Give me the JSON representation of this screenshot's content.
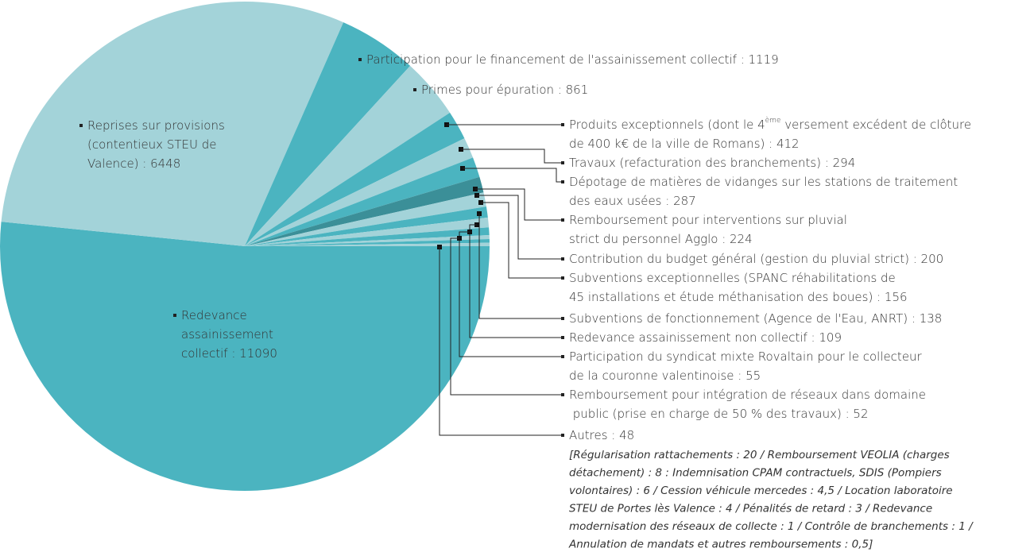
{
  "chart_data": {
    "type": "pie",
    "categories": [
      [
        "Redevance",
        "assainissement",
        "collectif : 11090"
      ],
      [
        "Reprises sur provisions",
        "(contentieux STEU de",
        "Valence) : 6448"
      ],
      [
        "Participation pour le financement de l'assainissement collectif : 1119"
      ],
      [
        "Primes pour épuration : 861"
      ],
      [
        [
          "Produits exceptionnels (dont le 4",
          "ème",
          " versement excédent de clôture"
        ],
        "de 400 k€ de la ville de Romans) : 412"
      ],
      [
        "Travaux (refacturation des branchements) : 294"
      ],
      [
        "Dépotage de matières de vidanges sur les stations de traitement",
        "des eaux usées : 287"
      ],
      [
        "Remboursement pour interventions sur pluvial",
        "strict du personnel Agglo : 224"
      ],
      [
        "Contribution du budget général (gestion du pluvial strict) : 200"
      ],
      [
        "Subventions exceptionnelles (SPANC réhabilitations de",
        "45 installations et étude méthanisation des boues) : 156"
      ],
      [
        "Subventions de fonctionnement (Agence de l'Eau, ANRT) : 138"
      ],
      [
        "Redevance assainissement non collectif : 109"
      ],
      [
        "Participation du syndicat mixte Rovaltain pour le collecteur",
        "de la couronne valentinoise : 55"
      ],
      [
        "Remboursement pour intégration de réseaux dans domaine",
        " public (prise en charge de 50 % des travaux) : 52"
      ],
      [
        "Autres : 48"
      ]
    ],
    "values": [
      11090,
      6448,
      1119,
      861,
      412,
      294,
      287,
      224,
      200,
      156,
      138,
      109,
      55,
      52,
      48
    ],
    "colors": [
      "#4bb4c0",
      "#a3d3d9",
      "#4bb4c0",
      "#a3d3d9",
      "#4bb4c0",
      "#a3d3d9",
      "#4bb4c0",
      "#3b8f98",
      "#a3d3d9",
      "#4bb4c0",
      "#a3d3d9",
      "#4bb4c0",
      "#a3d3d9",
      "#4bb4c0",
      "#a3d3d9"
    ],
    "note": [
      "[Régularisation rattachements : 20 / Remboursement VEOLIA (charges",
      "détachement) : 8 : Indemnisation CPAM contractuels, SDIS (Pompiers",
      "volontaires) : 6 / Cession véhicule mercedes : 4,5 / Location laboratoire",
      "STEU de Portes lès Valence : 4 / Pénalités de retard : 3 / Redevance",
      "modernisation des réseaux de collecte : 1 / Contrôle de branchements : 1 /",
      "Annulation de mandats et autres remboursements : 0,5]"
    ]
  }
}
